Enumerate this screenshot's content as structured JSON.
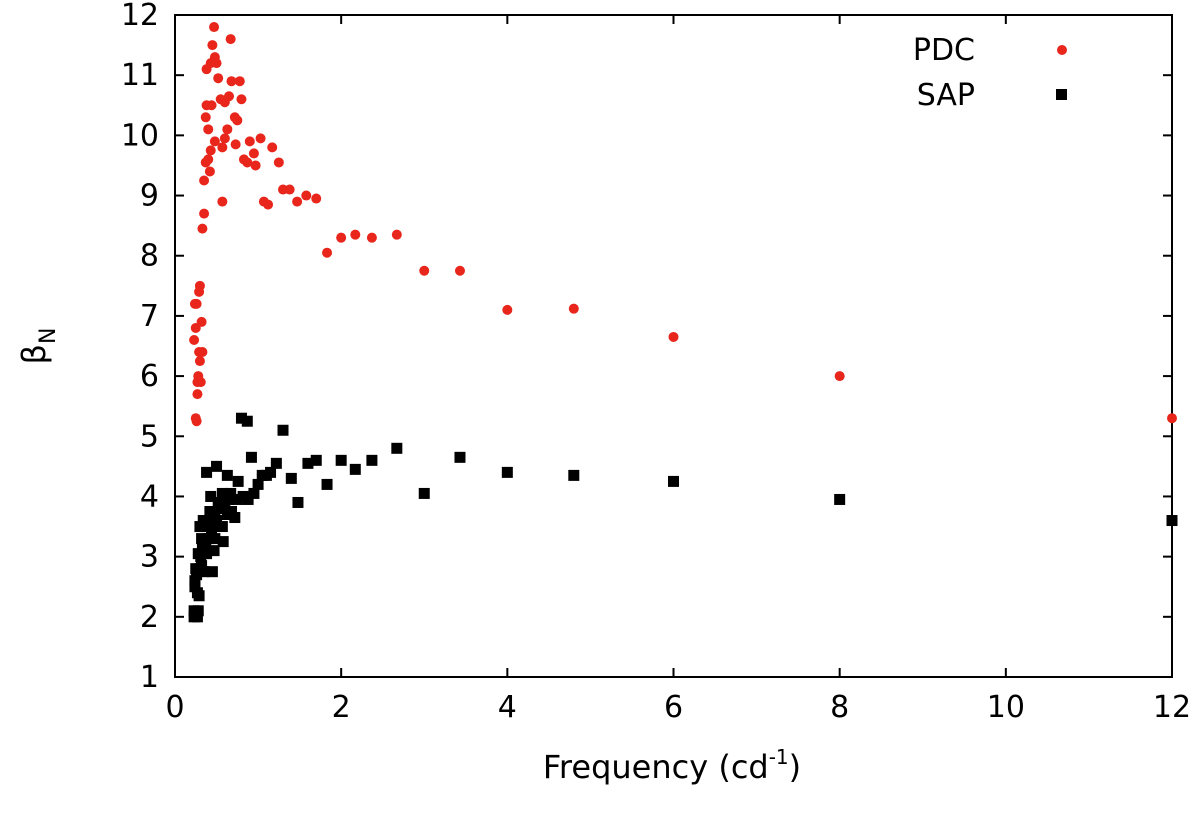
{
  "chart_data": {
    "type": "scatter",
    "title": "",
    "xlabel": "Frequency (cd",
    "xlabel_sup": "-1",
    "xlabel_close": ")",
    "ylabel": "β",
    "ylabel_sub": "N",
    "xlim": [
      0,
      12
    ],
    "ylim": [
      1,
      12
    ],
    "xticks": [
      0,
      2,
      4,
      6,
      8,
      10,
      12
    ],
    "yticks": [
      1,
      2,
      3,
      4,
      5,
      6,
      7,
      8,
      9,
      10,
      11,
      12
    ],
    "grid": false,
    "legend_position": "top-right",
    "series": [
      {
        "name": "PDC",
        "marker": "circle",
        "color": "#e8261c",
        "points": [
          [
            0.23,
            6.6
          ],
          [
            0.24,
            7.2
          ],
          [
            0.25,
            6.8
          ],
          [
            0.26,
            7.2
          ],
          [
            0.25,
            5.3
          ],
          [
            0.26,
            5.25
          ],
          [
            0.27,
            5.7
          ],
          [
            0.27,
            5.9
          ],
          [
            0.28,
            6.0
          ],
          [
            0.29,
            6.4
          ],
          [
            0.29,
            7.4
          ],
          [
            0.3,
            7.5
          ],
          [
            0.3,
            6.25
          ],
          [
            0.31,
            5.9
          ],
          [
            0.32,
            6.9
          ],
          [
            0.33,
            6.4
          ],
          [
            0.33,
            8.45
          ],
          [
            0.35,
            8.7
          ],
          [
            0.35,
            9.25
          ],
          [
            0.37,
            9.55
          ],
          [
            0.37,
            10.3
          ],
          [
            0.38,
            10.5
          ],
          [
            0.38,
            11.1
          ],
          [
            0.4,
            10.1
          ],
          [
            0.4,
            9.6
          ],
          [
            0.42,
            9.4
          ],
          [
            0.43,
            9.75
          ],
          [
            0.43,
            11.2
          ],
          [
            0.44,
            10.5
          ],
          [
            0.45,
            11.5
          ],
          [
            0.47,
            11.8
          ],
          [
            0.48,
            11.3
          ],
          [
            0.48,
            9.9
          ],
          [
            0.5,
            11.2
          ],
          [
            0.52,
            10.95
          ],
          [
            0.55,
            10.6
          ],
          [
            0.57,
            8.9
          ],
          [
            0.57,
            9.8
          ],
          [
            0.6,
            10.55
          ],
          [
            0.6,
            9.95
          ],
          [
            0.63,
            10.1
          ],
          [
            0.65,
            10.65
          ],
          [
            0.67,
            11.6
          ],
          [
            0.68,
            10.9
          ],
          [
            0.72,
            10.3
          ],
          [
            0.73,
            9.85
          ],
          [
            0.75,
            10.25
          ],
          [
            0.78,
            10.9
          ],
          [
            0.8,
            10.6
          ],
          [
            0.83,
            9.6
          ],
          [
            0.87,
            9.55
          ],
          [
            0.9,
            9.9
          ],
          [
            0.95,
            9.7
          ],
          [
            0.97,
            9.5
          ],
          [
            1.03,
            9.95
          ],
          [
            1.07,
            8.9
          ],
          [
            1.12,
            8.85
          ],
          [
            1.17,
            9.8
          ],
          [
            1.25,
            9.55
          ],
          [
            1.3,
            9.1
          ],
          [
            1.38,
            9.1
          ],
          [
            1.47,
            8.9
          ],
          [
            1.58,
            9.0
          ],
          [
            1.7,
            8.95
          ],
          [
            1.83,
            8.05
          ],
          [
            2.0,
            8.3
          ],
          [
            2.17,
            8.35
          ],
          [
            2.37,
            8.3
          ],
          [
            2.67,
            8.35
          ],
          [
            3.0,
            7.75
          ],
          [
            3.43,
            7.75
          ],
          [
            4.0,
            7.1
          ],
          [
            4.8,
            7.12
          ],
          [
            6.0,
            6.65
          ],
          [
            8.0,
            6.0
          ],
          [
            12.0,
            5.3
          ]
        ]
      },
      {
        "name": "SAP",
        "marker": "square",
        "color": "#000000",
        "points": [
          [
            0.23,
            2.0
          ],
          [
            0.23,
            2.1
          ],
          [
            0.24,
            2.5
          ],
          [
            0.24,
            2.6
          ],
          [
            0.25,
            2.8
          ],
          [
            0.26,
            2.7
          ],
          [
            0.27,
            2.0
          ],
          [
            0.27,
            2.4
          ],
          [
            0.28,
            3.05
          ],
          [
            0.28,
            2.1
          ],
          [
            0.29,
            2.35
          ],
          [
            0.3,
            2.8
          ],
          [
            0.3,
            3.5
          ],
          [
            0.31,
            3.0
          ],
          [
            0.32,
            3.3
          ],
          [
            0.32,
            2.85
          ],
          [
            0.33,
            3.15
          ],
          [
            0.34,
            3.6
          ],
          [
            0.35,
            2.75
          ],
          [
            0.36,
            3.5
          ],
          [
            0.37,
            3.2
          ],
          [
            0.38,
            3.05
          ],
          [
            0.38,
            4.4
          ],
          [
            0.4,
            3.6
          ],
          [
            0.4,
            3.3
          ],
          [
            0.42,
            3.75
          ],
          [
            0.43,
            4.0
          ],
          [
            0.44,
            3.45
          ],
          [
            0.45,
            2.75
          ],
          [
            0.47,
            3.1
          ],
          [
            0.48,
            3.7
          ],
          [
            0.48,
            3.3
          ],
          [
            0.5,
            4.5
          ],
          [
            0.5,
            3.6
          ],
          [
            0.52,
            3.9
          ],
          [
            0.55,
            3.8
          ],
          [
            0.57,
            3.5
          ],
          [
            0.57,
            4.05
          ],
          [
            0.58,
            3.25
          ],
          [
            0.6,
            3.85
          ],
          [
            0.63,
            4.35
          ],
          [
            0.63,
            3.7
          ],
          [
            0.65,
            3.95
          ],
          [
            0.67,
            4.05
          ],
          [
            0.68,
            3.75
          ],
          [
            0.72,
            3.65
          ],
          [
            0.75,
            3.95
          ],
          [
            0.76,
            4.25
          ],
          [
            0.8,
            5.3
          ],
          [
            0.82,
            4.0
          ],
          [
            0.87,
            5.25
          ],
          [
            0.88,
            3.95
          ],
          [
            0.92,
            4.65
          ],
          [
            0.95,
            4.05
          ],
          [
            1.0,
            4.2
          ],
          [
            1.05,
            4.35
          ],
          [
            1.1,
            4.35
          ],
          [
            1.15,
            4.4
          ],
          [
            1.22,
            4.55
          ],
          [
            1.3,
            5.1
          ],
          [
            1.4,
            4.3
          ],
          [
            1.48,
            3.9
          ],
          [
            1.6,
            4.55
          ],
          [
            1.7,
            4.6
          ],
          [
            1.83,
            4.2
          ],
          [
            2.0,
            4.6
          ],
          [
            2.17,
            4.45
          ],
          [
            2.37,
            4.6
          ],
          [
            2.67,
            4.8
          ],
          [
            3.0,
            4.05
          ],
          [
            3.43,
            4.65
          ],
          [
            4.0,
            4.4
          ],
          [
            4.8,
            4.35
          ],
          [
            6.0,
            4.25
          ],
          [
            8.0,
            3.95
          ],
          [
            12.0,
            3.6
          ]
        ]
      }
    ]
  }
}
